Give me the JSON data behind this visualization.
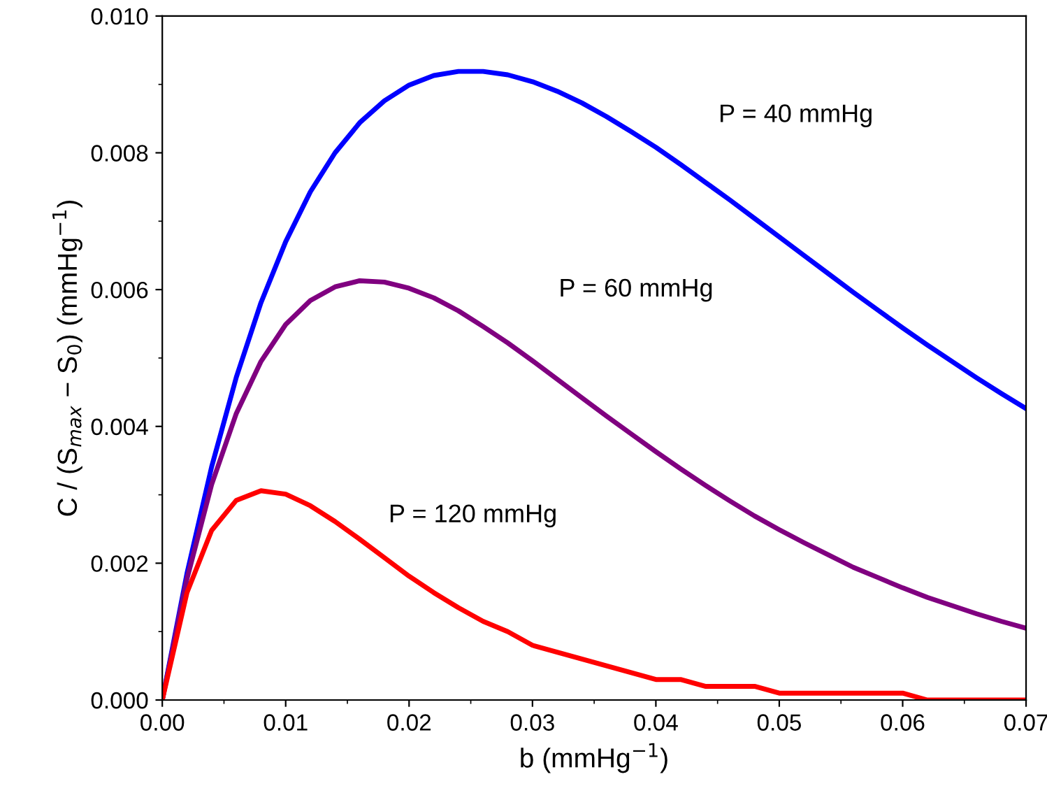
{
  "chart_data": {
    "type": "line",
    "xlabel": "b (mmHg$^{−1}$)",
    "ylabel": "C / (S$_{max}$ − S$_{0}$) (mmHg$^{−1}$)",
    "x": [
      0,
      0.002,
      0.004,
      0.006,
      0.008,
      0.01,
      0.012,
      0.014,
      0.016,
      0.018,
      0.02,
      0.022,
      0.024,
      0.026,
      0.028,
      0.03,
      0.032,
      0.034,
      0.036,
      0.038,
      0.04,
      0.042,
      0.044,
      0.046,
      0.048,
      0.05,
      0.052,
      0.054,
      0.056,
      0.058,
      0.06,
      0.062,
      0.064,
      0.066,
      0.068,
      0.07
    ],
    "series": [
      {
        "color": "#0000ff",
        "values": [
          0,
          0.00185,
          0.00341,
          0.00472,
          0.00581,
          0.0067,
          0.00743,
          0.008,
          0.00844,
          0.00876,
          0.00899,
          0.00913,
          0.00919,
          0.00919,
          0.00914,
          0.00904,
          0.0089,
          0.00873,
          0.00853,
          0.00831,
          0.00808,
          0.00783,
          0.00757,
          0.00731,
          0.00704,
          0.00677,
          0.0065,
          0.00623,
          0.00596,
          0.0057,
          0.00544,
          0.00519,
          0.00495,
          0.00471,
          0.00448,
          0.00426
        ]
      },
      {
        "color": "#800080",
        "values": [
          0,
          0.00177,
          0.00315,
          0.00419,
          0.00495,
          0.00549,
          0.00584,
          0.00604,
          0.00613,
          0.00611,
          0.00602,
          0.00588,
          0.00569,
          0.00546,
          0.00522,
          0.00496,
          0.00469,
          0.00442,
          0.00415,
          0.00389,
          0.00363,
          0.00338,
          0.00314,
          0.00291,
          0.00269,
          0.00249,
          0.0023,
          0.00212,
          0.00194,
          0.00179,
          0.00164,
          0.0015,
          0.00138,
          0.00126,
          0.00115,
          0.00105
        ]
      },
      {
        "color": "#ff0000",
        "values": [
          0,
          0.00157,
          0.00248,
          0.00292,
          0.00306,
          0.00301,
          0.00284,
          0.00261,
          0.00235,
          0.00208,
          0.00181,
          0.00157,
          0.00135,
          0.00115,
          0.001,
          0.0008,
          0.0007,
          0.0006,
          0.0005,
          0.0004,
          0.0003,
          0.0003,
          0.0002,
          0.0002,
          0.0002,
          0.0001,
          0.0001,
          0.0001,
          0.0001,
          0.0001,
          0.0001,
          0,
          0,
          0,
          0,
          0
        ]
      }
    ],
    "xlim": [
      0,
      0.07
    ],
    "ylim": [
      0,
      0.01
    ],
    "xticks": [
      {
        "value": 0,
        "label": "0.00"
      },
      {
        "value": 0.01,
        "label": "0.01"
      },
      {
        "value": 0.02,
        "label": "0.02"
      },
      {
        "value": 0.03,
        "label": "0.03"
      },
      {
        "value": 0.04,
        "label": "0.04"
      },
      {
        "value": 0.05,
        "label": "0.05"
      },
      {
        "value": 0.06,
        "label": "0.06"
      },
      {
        "value": 0.07,
        "label": "0.07"
      }
    ],
    "yticks": [
      {
        "value": 0,
        "label": "0.000"
      },
      {
        "value": 0.002,
        "label": "0.002"
      },
      {
        "value": 0.004,
        "label": "0.004"
      },
      {
        "value": 0.006,
        "label": "0.006"
      },
      {
        "value": 0.008,
        "label": "0.008"
      },
      {
        "value": 0.01,
        "label": "0.010"
      }
    ],
    "annotations": [
      "P = 40 mmHg",
      "P = 60 mmHg",
      "P = 120 mmHg"
    ],
    "grid": false,
    "legend": false,
    "marker": "none",
    "line_style": "solid"
  }
}
